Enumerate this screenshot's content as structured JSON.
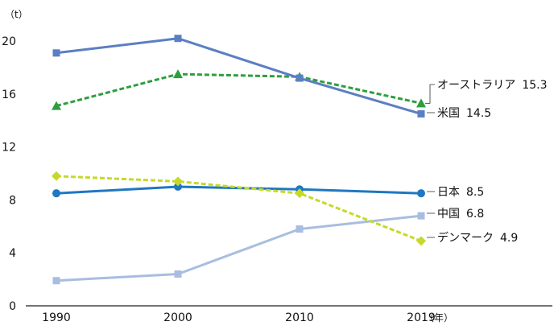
{
  "chart_data": {
    "type": "line",
    "y_unit_label": "（t）",
    "x_unit_label": "（年）",
    "x": [
      "1990",
      "2000",
      "2010",
      "2019"
    ],
    "y_ticks": [
      "0",
      "4",
      "8",
      "12",
      "16",
      "20"
    ],
    "ylim": [
      0,
      21
    ],
    "grid": false,
    "series": [
      {
        "name": "オーストラリア",
        "value_label": "15.3",
        "values": [
          15.1,
          17.5,
          17.3,
          15.3
        ],
        "color": "#2e9e3e",
        "dashed": true,
        "marker": "triangle"
      },
      {
        "name": "米国",
        "value_label": "14.5",
        "values": [
          19.1,
          20.2,
          17.2,
          14.5
        ],
        "color": "#5b7fc2",
        "dashed": false,
        "marker": "square"
      },
      {
        "name": "日本",
        "value_label": "8.5",
        "values": [
          8.5,
          9.0,
          8.8,
          8.5
        ],
        "color": "#1f78c1",
        "dashed": false,
        "marker": "circle"
      },
      {
        "name": "中国",
        "value_label": "6.8",
        "values": [
          1.9,
          2.4,
          5.8,
          6.8
        ],
        "color": "#a8bde0",
        "dashed": false,
        "marker": "square"
      },
      {
        "name": "デンマーク",
        "value_label": "4.9",
        "values": [
          9.8,
          9.4,
          8.5,
          4.9
        ],
        "color": "#c6d92a",
        "dashed": true,
        "marker": "diamond"
      }
    ]
  }
}
